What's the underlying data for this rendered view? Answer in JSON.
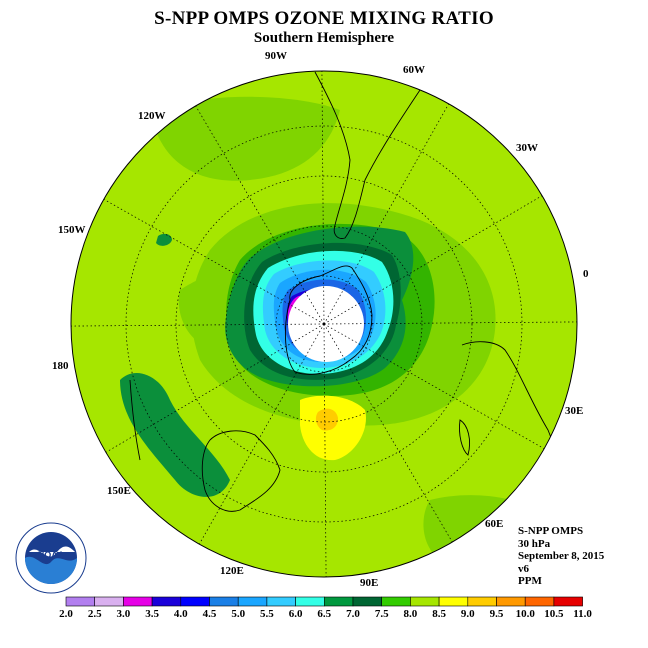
{
  "title": "S-NPP OMPS OZONE MIXING RATIO",
  "subtitle": "Southern Hemisphere",
  "longitude_labels": [
    "90W",
    "60W",
    "30W",
    "0",
    "30E",
    "60E",
    "90E",
    "120E",
    "150E",
    "180",
    "150W",
    "120W"
  ],
  "info": {
    "instrument": "S-NPP OMPS",
    "level": "30 hPa",
    "date": "September 8, 2015",
    "version": "v6",
    "units": "PPM"
  },
  "logo": {
    "text": "NOAA",
    "name": "noaa-logo"
  },
  "color_scale": {
    "labels": [
      "2.0",
      "2.5",
      "3.0",
      "3.5",
      "4.0",
      "4.5",
      "5.0",
      "5.5",
      "6.0",
      "6.5",
      "7.0",
      "7.5",
      "8.0",
      "8.5",
      "9.0",
      "9.5",
      "10.0",
      "10.5",
      "11.0"
    ],
    "colors": [
      "#b27fef",
      "#d9b0ef",
      "#e600e6",
      "#1a00d9",
      "#0000ff",
      "#1a7fe6",
      "#1aa6ff",
      "#33ccff",
      "#33ffe6",
      "#00993f",
      "#006633",
      "#33cc00",
      "#a6e600",
      "#ffff00",
      "#ffcc00",
      "#ff9900",
      "#ff6600",
      "#e60000",
      "#8b5a2b"
    ]
  },
  "map_colors": {
    "background": "#a6e600",
    "band_75": "#80d400",
    "band_70": "#33b400",
    "band_65": "#0b8f3b",
    "band_60": "#006633",
    "band_55": "#33ffe6",
    "band_50": "#33ccff",
    "band_45": "#1aa6ff",
    "band_40": "#1a66e6",
    "band_35": "#1a00d9",
    "band_30": "#e600e6",
    "high_85": "#ffff00",
    "high_90": "#ffcc00",
    "pole_hole": "#ffffff"
  }
}
